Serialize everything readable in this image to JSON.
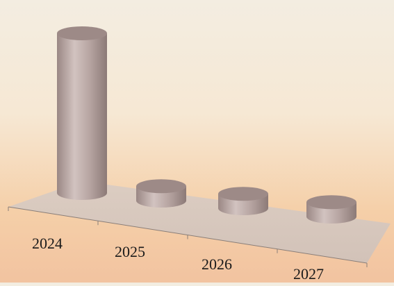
{
  "chart_data": {
    "type": "bar",
    "style": "3d-cylinder",
    "categories": [
      "2024",
      "2025",
      "2026",
      "2027"
    ],
    "values": [
      100,
      9,
      9,
      9
    ],
    "title": "",
    "xlabel": "",
    "ylabel": "",
    "grid": false,
    "legend": "none",
    "colors": {
      "bar_fill": "#b8a7a4",
      "bar_top": "#9d8a87",
      "floor": "#d7c8bd",
      "axis": "#8a7e78",
      "label": "#1a1a1a"
    }
  }
}
